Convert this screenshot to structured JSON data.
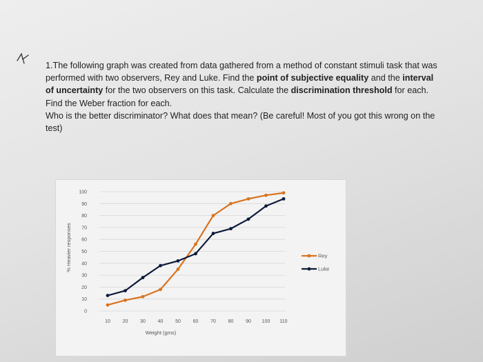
{
  "question": {
    "number": "1.",
    "intro": "The following graph was created from data gathered from a method of constant stimuli task that was performed with two observers, Rey and Luke. Find the",
    "bold1": "point of subjective equality",
    "and": "and the",
    "bold2": "interval of uncertainty",
    "mid": "for the two observers on this task. Calculate the",
    "bold3": "discrimination threshold",
    "tail": "for each. Find the Weber fraction for each.",
    "line2": "Who is the better discriminator? What does that mean? (Be careful! Most of you got this wrong on the test)"
  },
  "colors": {
    "rey": "#d9731e",
    "luke": "#0d1a3a",
    "grid": "#d6d6d6",
    "axis_text": "#555555"
  },
  "chart_data": {
    "type": "line",
    "title": "",
    "xlabel": "Weight (gms)",
    "ylabel": "% Heavier responses",
    "x": [
      10,
      20,
      30,
      40,
      50,
      60,
      70,
      80,
      90,
      100,
      110
    ],
    "xlim": [
      10,
      110
    ],
    "ylim": [
      0,
      100
    ],
    "x_ticks": [
      "10",
      "20",
      "30",
      "40",
      "50",
      "60",
      "70",
      "80",
      "90",
      "100",
      "110"
    ],
    "y_ticks": [
      "0",
      "10",
      "20",
      "30",
      "40",
      "50",
      "60",
      "70",
      "80",
      "90",
      "100"
    ],
    "grid": true,
    "legend_position": "right",
    "series": [
      {
        "name": "Rey",
        "values": [
          5,
          9,
          12,
          18,
          35,
          56,
          80,
          90,
          94,
          97,
          99
        ]
      },
      {
        "name": "Luke",
        "values": [
          13,
          17,
          28,
          38,
          42,
          48,
          65,
          69,
          77,
          88,
          94
        ]
      }
    ]
  }
}
